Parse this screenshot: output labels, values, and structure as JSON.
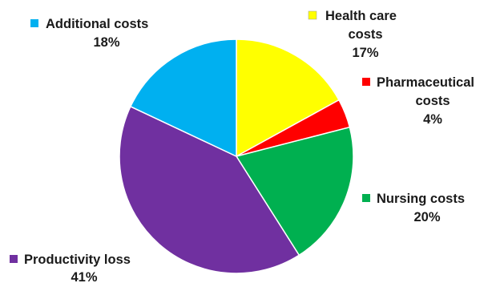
{
  "chart_data": {
    "type": "pie",
    "title": "",
    "slices": [
      {
        "label": "Health care costs",
        "value": 17,
        "display": "17%",
        "color": "#FFFF00"
      },
      {
        "label": "Pharmaceutical costs",
        "value": 4,
        "display": "4%",
        "color": "#FF0000"
      },
      {
        "label": "Nursing costs",
        "value": 20,
        "display": "20%",
        "color": "#00B050"
      },
      {
        "label": "Productivity loss",
        "value": 41,
        "display": "41%",
        "color": "#7030A0"
      },
      {
        "label": "Additional costs",
        "value": 18,
        "display": "18%",
        "color": "#00B0F0"
      }
    ],
    "start_angle_deg": 0,
    "direction": "clockwise",
    "legend": "none",
    "data_labels": "outside"
  }
}
